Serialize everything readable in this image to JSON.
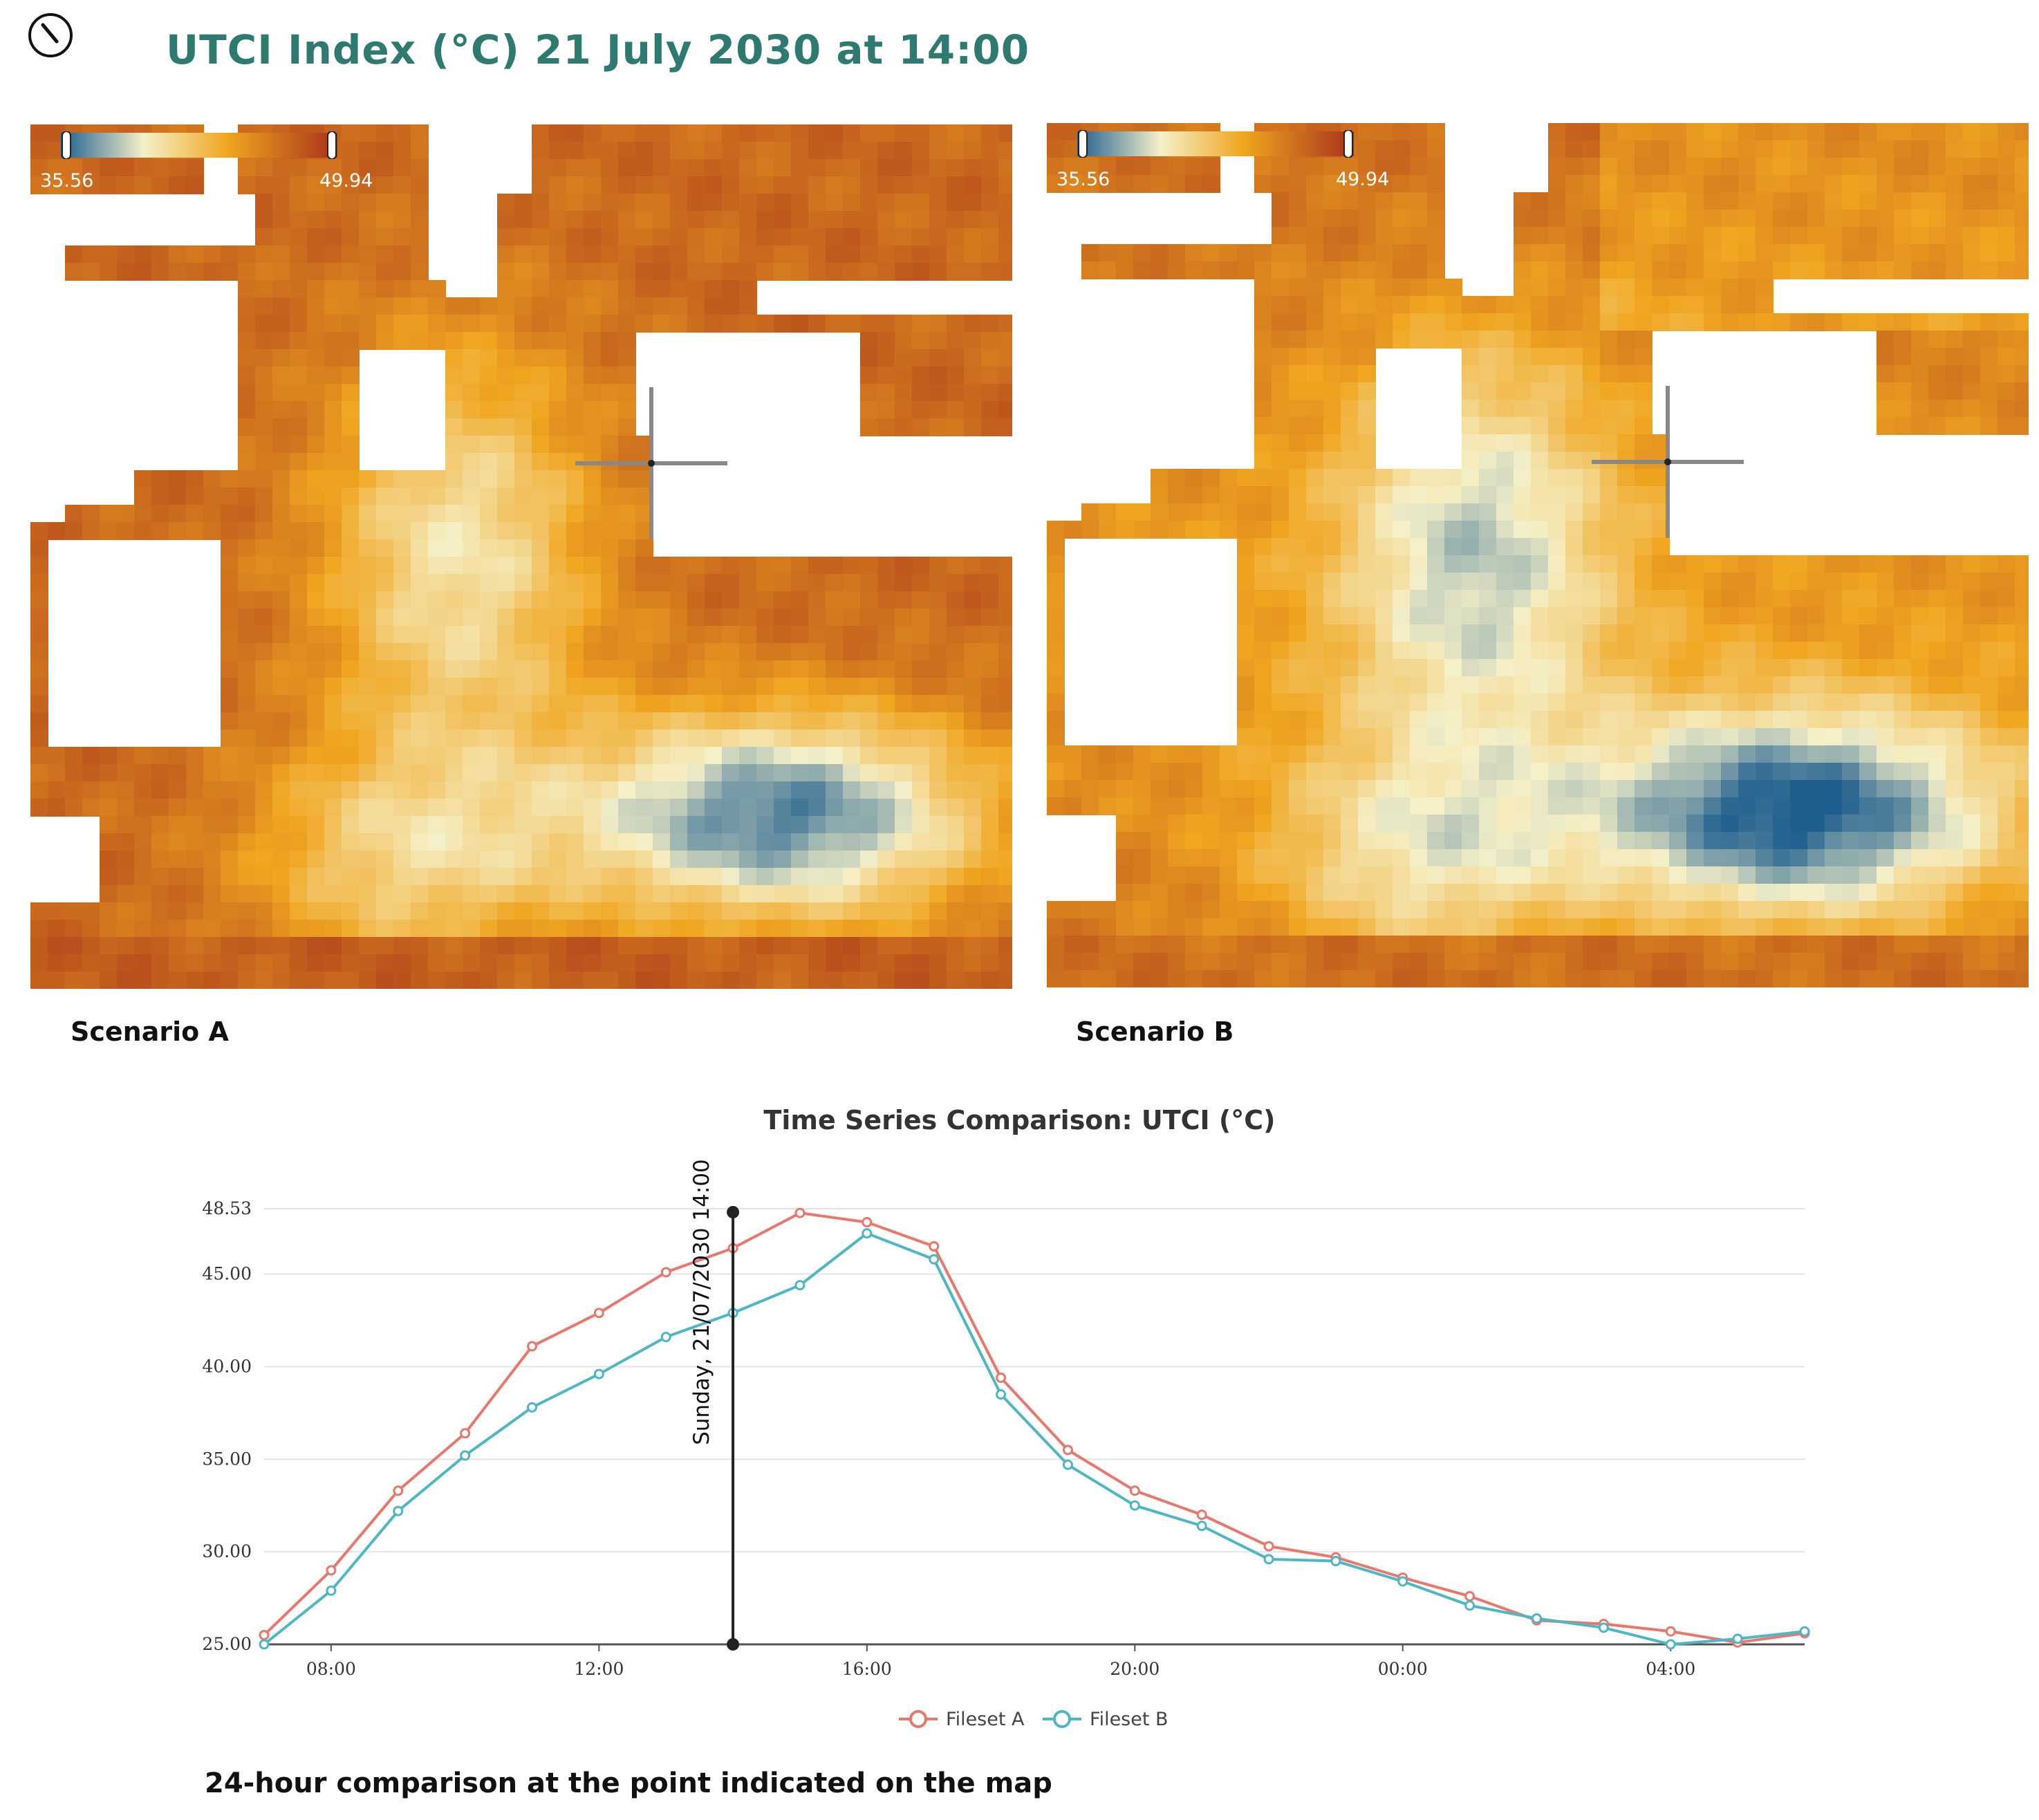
{
  "header": {
    "title": "UTCI Index (°C) 21 July 2030 at 14:00"
  },
  "maps": [
    {
      "label": "Scenario A",
      "colorbar_min": "35.56",
      "colorbar_max": "49.94"
    },
    {
      "label": "Scenario B",
      "colorbar_min": "35.56",
      "colorbar_max": "49.94"
    }
  ],
  "colors": {
    "title": "#2f7a70",
    "series_a": "#e8786b",
    "series_b": "#4fb6c4",
    "utci_cool": "#1f5f8f",
    "utci_mid": "#f5f0c8",
    "utci_warm": "#f0a620",
    "utci_hot": "#a8321c"
  },
  "chart_data": {
    "type": "line",
    "title": "Time Series Comparison: UTCI (°C)",
    "x_tick_labels": [
      "08:00",
      "12:00",
      "16:00",
      "20:00",
      "00:00",
      "04:00"
    ],
    "x_tick_hours": [
      8,
      12,
      16,
      20,
      24,
      28
    ],
    "x_hours": [
      7,
      8,
      9,
      10,
      11,
      12,
      13,
      14,
      15,
      16,
      17,
      18,
      19,
      20,
      21,
      22,
      23,
      24,
      25,
      26,
      27,
      28,
      29,
      30
    ],
    "y_tick_labels": [
      "25.00",
      "30.00",
      "35.00",
      "40.00",
      "45.00",
      "48.53"
    ],
    "ylim": [
      25,
      48.53
    ],
    "grid": true,
    "legend_position": "bottom-center",
    "marker_line": {
      "hour": 14,
      "label": "Sunday, 21/07/2030 14:00"
    },
    "series": [
      {
        "name": "Fileset A",
        "values": [
          25.5,
          29.0,
          33.3,
          36.4,
          41.1,
          42.9,
          45.1,
          46.4,
          48.3,
          47.8,
          46.5,
          39.4,
          35.5,
          33.3,
          32.0,
          30.3,
          29.7,
          28.6,
          27.6,
          26.3,
          26.1,
          25.7,
          25.1,
          25.6
        ]
      },
      {
        "name": "Fileset B",
        "values": [
          25.0,
          27.9,
          32.2,
          35.2,
          37.8,
          39.6,
          41.6,
          42.9,
          44.4,
          47.2,
          45.8,
          38.5,
          34.7,
          32.5,
          31.4,
          29.6,
          29.5,
          28.4,
          27.1,
          26.4,
          25.9,
          25.0,
          25.3,
          25.7
        ]
      }
    ]
  },
  "caption": "24-hour comparison at the point indicated on the map"
}
